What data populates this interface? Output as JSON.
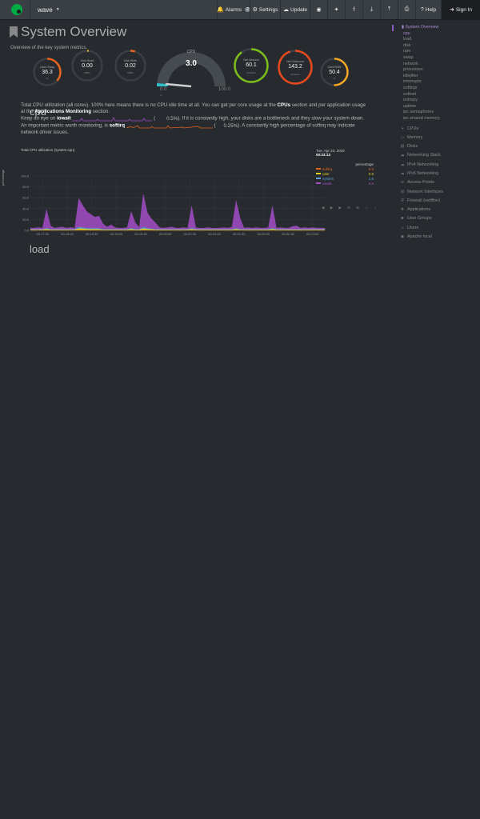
{
  "navbar": {
    "host": "wave",
    "buttons": [
      {
        "name": "alarms",
        "icon": "bell-icon",
        "glyph": "🔔",
        "label": "Alarms",
        "badge": "2"
      },
      {
        "name": "settings",
        "icon": "gear-icon",
        "glyph": "⚙",
        "label": "Settings"
      },
      {
        "name": "update",
        "icon": "cloud-download-icon",
        "glyph": "☁",
        "label": "Update"
      },
      {
        "name": "github",
        "icon": "github-icon",
        "glyph": "◉",
        "label": ""
      },
      {
        "name": "twitter",
        "icon": "twitter-icon",
        "glyph": "✦",
        "label": ""
      },
      {
        "name": "facebook",
        "icon": "facebook-icon",
        "glyph": "f",
        "label": ""
      },
      {
        "name": "download",
        "icon": "download-icon",
        "glyph": "⤓",
        "label": ""
      },
      {
        "name": "upload",
        "icon": "upload-icon",
        "glyph": "⤒",
        "label": ""
      },
      {
        "name": "print",
        "icon": "print-icon",
        "glyph": "⎙",
        "label": ""
      },
      {
        "name": "help",
        "icon": "question-icon",
        "glyph": "?",
        "label": "Help"
      },
      {
        "name": "sign-in",
        "icon": "sign-in-icon",
        "glyph": "➜",
        "label": "Sign In"
      }
    ]
  },
  "page": {
    "title": "System Overview",
    "subtitle": "Overview of the key system metrics."
  },
  "gauges": {
    "main": {
      "title": "CPU",
      "value": "3.0",
      "min": "0.0",
      "max": "100.0",
      "unit": "%",
      "fraction": 0.03
    },
    "dials": [
      {
        "label": "Used Swap",
        "value": "36.3",
        "unit": "%",
        "color": "#e8641b",
        "fraction": 0.363
      },
      {
        "label": "Disk Read",
        "value": "0.00",
        "unit": "MiB/s",
        "color": "#e8b51b",
        "fraction": 0.0
      },
      {
        "label": "Disk Write",
        "value": "0.02",
        "unit": "MiB/s",
        "color": "#e8641b",
        "fraction": 0.05
      },
      {
        "label": "Net Inbound",
        "value": "60.1",
        "unit": "kilobits/s",
        "color": "#7cbf1b",
        "fraction": 0.9
      },
      {
        "label": "Net Outbound",
        "value": "143.2",
        "unit": "kilobits/s",
        "color": "#e84a1b",
        "fraction": 0.95
      },
      {
        "label": "Used RAM",
        "value": "50.4",
        "unit": "%",
        "color": "#f5a623",
        "fraction": 0.504
      }
    ]
  },
  "sections": {
    "cpu": "cpu",
    "load": "load"
  },
  "cpu_desc": {
    "p1a": "Total CPU utilization (all cores). 100% here means there is no CPU idle time at all. You can get per core usage at the ",
    "p1b": "CPUs",
    "p1c": " section and per application usage at the ",
    "p1d": "Applications Monitoring",
    "p1e": " section.",
    "p2a": "Keep an eye on ",
    "p2b": "iowait",
    "p2c": "0.5%",
    "p2d": "). If it is constantly high, your disks are a bottleneck and they slow your system down.",
    "p3a": "An important metric worth monitoring, is ",
    "p3b": "softirq",
    "p3c": "0.25%",
    "p3d": "). A constantly high percentage of softirq may indicate network driver issues."
  },
  "chart_data": {
    "type": "area",
    "title": "Total CPU utilization (system.cpu)",
    "ylabel": "percentage",
    "ylim": [
      0,
      100
    ],
    "yticks": [
      "100.0",
      "80.0",
      "60.0",
      "40.0",
      "20.0",
      "0.0"
    ],
    "xticks": [
      "00:17:30",
      "00:18:00",
      "00:18:30",
      "00:19:00",
      "00:19:30",
      "00:20:00",
      "00:20:30",
      "00:21:00",
      "00:21:30",
      "00:22:00",
      "00:22:30",
      "00:23:00"
    ],
    "x": [
      0,
      5,
      10,
      15,
      20,
      25,
      30,
      35,
      40,
      45,
      50,
      55,
      60,
      65,
      70,
      75,
      80,
      85,
      90,
      95,
      100,
      105,
      110,
      115,
      120,
      125,
      130,
      135,
      140,
      145,
      150,
      155,
      160,
      165,
      170,
      175,
      180,
      185,
      190,
      195,
      200,
      205,
      210,
      215,
      220,
      225,
      230,
      235,
      240,
      245,
      250,
      255,
      260,
      265,
      270,
      275,
      280,
      285,
      290,
      295,
      300,
      305,
      310,
      315,
      320,
      325,
      330,
      335,
      340,
      345,
      350,
      355,
      360,
      365
    ],
    "series": [
      {
        "name": "iowait",
        "color": "#a54cc7",
        "values": [
          2,
          2,
          3,
          2,
          34,
          6,
          2,
          3,
          4,
          2,
          3,
          2,
          52,
          40,
          30,
          25,
          20,
          22,
          10,
          4,
          8,
          3,
          2,
          2,
          3,
          30,
          12,
          3,
          60,
          28,
          18,
          12,
          3,
          2,
          3,
          4,
          2,
          2,
          3,
          2,
          40,
          3,
          2,
          2,
          3,
          2,
          2,
          2,
          3,
          2,
          4,
          50,
          20,
          2,
          3,
          2,
          3,
          2,
          2,
          3,
          40,
          2,
          3,
          2,
          2,
          5,
          6,
          2,
          3,
          2,
          3,
          2,
          2,
          2
        ]
      },
      {
        "name": "system",
        "color": "#5aa0d6",
        "values": [
          1,
          1,
          1,
          1,
          2,
          1,
          1,
          1,
          1,
          1,
          1,
          1,
          3,
          2,
          2,
          2,
          2,
          2,
          1,
          1,
          1,
          1,
          1,
          1,
          1,
          2,
          1,
          1,
          3,
          2,
          1,
          1,
          1,
          1,
          1,
          1,
          1,
          1,
          1,
          1,
          2,
          1,
          1,
          1,
          1,
          1,
          1,
          1,
          1,
          1,
          1,
          2,
          1,
          1,
          1,
          1,
          1,
          1,
          1,
          1,
          2,
          1,
          1,
          1,
          1,
          1,
          1,
          1,
          1,
          1,
          1,
          1,
          1,
          1
        ]
      },
      {
        "name": "user",
        "color": "#e8d21b",
        "values": [
          1,
          1,
          1,
          1,
          2,
          1,
          1,
          1,
          1,
          1,
          1,
          1,
          3,
          3,
          2,
          2,
          2,
          2,
          1,
          1,
          1,
          1,
          1,
          1,
          1,
          2,
          1,
          1,
          3,
          2,
          2,
          1,
          1,
          1,
          1,
          1,
          1,
          1,
          1,
          1,
          2,
          1,
          1,
          1,
          1,
          1,
          1,
          1,
          1,
          1,
          1,
          2,
          1,
          1,
          1,
          1,
          1,
          1,
          1,
          1,
          2,
          1,
          1,
          1,
          1,
          1,
          1,
          1,
          1,
          1,
          1,
          1,
          1,
          1
        ]
      },
      {
        "name": "softirq",
        "color": "#e8641b",
        "values": [
          0.3,
          0.2,
          0.3,
          0.2,
          0.5,
          0.2,
          0.2,
          0.3,
          0.2,
          0.2,
          0.3,
          0.2,
          0.6,
          0.5,
          0.4,
          0.3,
          0.3,
          0.3,
          0.2,
          0.2,
          0.2,
          0.2,
          0.2,
          0.2,
          0.2,
          0.4,
          0.2,
          0.2,
          0.6,
          0.4,
          0.3,
          0.2,
          0.2,
          0.2,
          0.2,
          0.2,
          0.2,
          0.2,
          0.2,
          0.2,
          0.4,
          0.2,
          0.2,
          0.2,
          0.2,
          0.2,
          0.2,
          0.2,
          0.2,
          0.2,
          0.2,
          0.4,
          0.3,
          0.2,
          0.2,
          0.2,
          0.2,
          0.2,
          0.2,
          0.2,
          0.4,
          0.2,
          0.2,
          0.2,
          0.2,
          0.2,
          0.2,
          0.2,
          0.2,
          0.2,
          0.2,
          0.2,
          0.2,
          0.2
        ]
      }
    ],
    "legend": {
      "date": "Tue, Apr 23, 2019",
      "time": "00:23:13",
      "header": "percentage",
      "items": [
        {
          "name": "softirq",
          "value": "0.3",
          "color": "#e8641b"
        },
        {
          "name": "user",
          "value": "0.8",
          "color": "#e8d21b"
        },
        {
          "name": "system",
          "value": "1.5",
          "color": "#5aa0d6"
        },
        {
          "name": "iowait",
          "value": "0.5",
          "color": "#a54cc7"
        }
      ]
    }
  },
  "sidebar": {
    "active": "System Overview",
    "subitems": [
      "cpu",
      "load",
      "disk",
      "ram",
      "swap",
      "network",
      "processes",
      "idlejitter",
      "interrupts",
      "softirqs",
      "softnet",
      "entropy",
      "uptime",
      "ipc semaphores",
      "ipc shared memory"
    ],
    "sections": [
      {
        "label": "CPUs",
        "icon": "bolt-icon",
        "glyph": "ϟ"
      },
      {
        "label": "Memory",
        "icon": "memory-icon",
        "glyph": "▭"
      },
      {
        "label": "Disks",
        "icon": "hdd-icon",
        "glyph": "▤"
      },
      {
        "label": "Networking Stack",
        "icon": "cloud-icon",
        "glyph": "☁"
      },
      {
        "label": "IPv4 Networking",
        "icon": "cloud-icon",
        "glyph": "☁"
      },
      {
        "label": "IPv6 Networking",
        "icon": "cloud-icon",
        "glyph": "☁"
      },
      {
        "label": "Access Points",
        "icon": "wifi-icon",
        "glyph": "≋"
      },
      {
        "label": "Network Interfaces",
        "icon": "sitemap-icon",
        "glyph": "⊞"
      },
      {
        "label": "Firewall (netfilter)",
        "icon": "shield-icon",
        "glyph": "⛨"
      },
      {
        "label": "Applications",
        "icon": "cubes-icon",
        "glyph": "❖"
      },
      {
        "label": "User Groups",
        "icon": "users-icon",
        "glyph": "☻"
      },
      {
        "label": "Users",
        "icon": "user-icon",
        "glyph": "☺"
      },
      {
        "label": "Apache local",
        "icon": "eye-icon",
        "glyph": "◉"
      }
    ]
  }
}
